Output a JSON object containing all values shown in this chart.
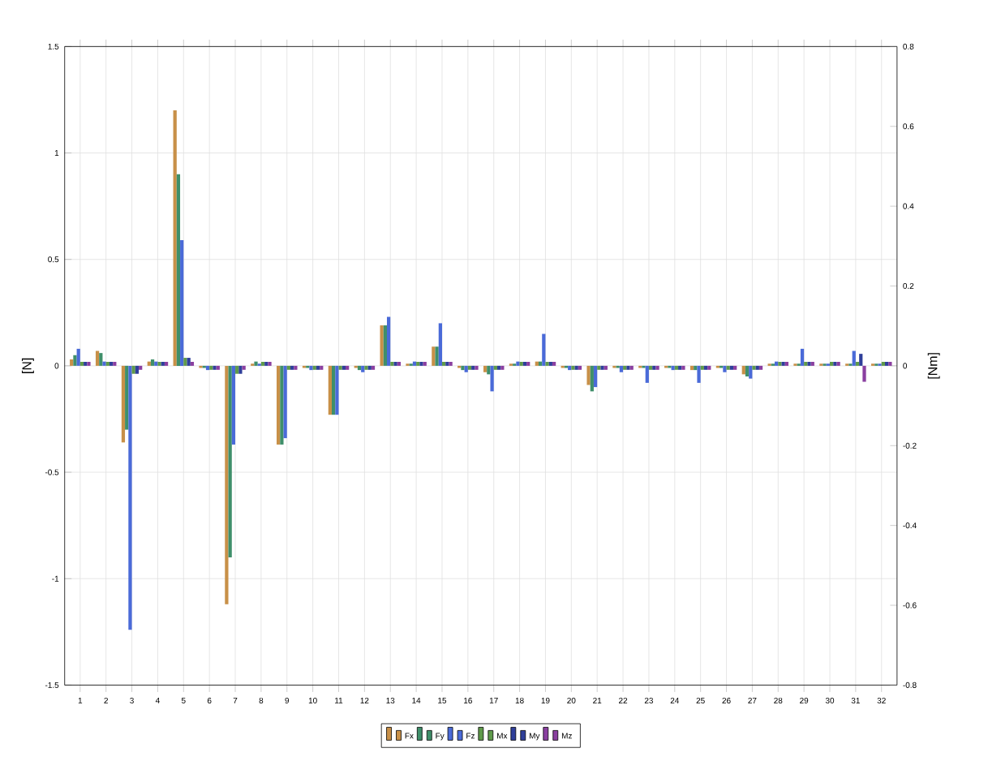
{
  "chart_data": {
    "type": "bar",
    "ylabel": "[N]",
    "y2label": "[Nm]",
    "categories": [
      "1",
      "2",
      "3",
      "4",
      "5",
      "6",
      "7",
      "8",
      "9",
      "10",
      "11",
      "12",
      "13",
      "14",
      "15",
      "16",
      "17",
      "18",
      "19",
      "20",
      "21",
      "22",
      "23",
      "24",
      "25",
      "26",
      "27",
      "28",
      "29",
      "30",
      "31",
      "32"
    ],
    "series": [
      {
        "name": "Fx",
        "color": "#c89048",
        "values": [
          0.03,
          0.07,
          -0.36,
          0.02,
          1.2,
          -0.01,
          -1.12,
          0.01,
          -0.37,
          -0.01,
          -0.23,
          -0.01,
          0.19,
          0.01,
          0.09,
          -0.01,
          -0.03,
          0.01,
          0.02,
          -0.01,
          -0.09,
          -0.01,
          -0.01,
          -0.01,
          -0.02,
          -0.01,
          -0.04,
          0.01,
          0.01,
          0.01,
          0.01,
          0.01
        ]
      },
      {
        "name": "Fy",
        "color": "#3f8f6a",
        "values": [
          0.05,
          0.06,
          -0.3,
          0.03,
          0.9,
          -0.01,
          -0.9,
          0.02,
          -0.37,
          -0.01,
          -0.23,
          -0.02,
          0.19,
          0.01,
          0.09,
          -0.02,
          -0.04,
          0.01,
          0.02,
          -0.01,
          -0.12,
          -0.01,
          -0.01,
          -0.01,
          -0.02,
          -0.01,
          -0.05,
          0.01,
          0.01,
          0.01,
          0.01,
          0.01
        ]
      },
      {
        "name": "Fz",
        "color": "#4a6ad8",
        "values": [
          0.08,
          0.02,
          -1.24,
          0.02,
          0.59,
          -0.02,
          -0.37,
          0.01,
          -0.34,
          -0.02,
          -0.23,
          -0.03,
          0.23,
          0.02,
          0.2,
          -0.03,
          -0.12,
          0.02,
          0.15,
          -0.02,
          -0.1,
          -0.03,
          -0.08,
          -0.02,
          -0.08,
          -0.03,
          -0.06,
          0.02,
          0.08,
          0.01,
          0.07,
          0.01
        ]
      },
      {
        "name": "Mx",
        "color": "#5f9a4a",
        "axis": "y2",
        "values": [
          0.01,
          0.01,
          -0.02,
          0.01,
          0.02,
          -0.01,
          -0.02,
          0.01,
          -0.01,
          -0.01,
          -0.01,
          -0.01,
          0.01,
          0.01,
          0.01,
          -0.01,
          -0.01,
          0.01,
          0.01,
          -0.01,
          -0.01,
          -0.01,
          -0.01,
          -0.01,
          -0.01,
          -0.01,
          -0.01,
          0.01,
          0.01,
          0.01,
          0.01,
          0.01
        ]
      },
      {
        "name": "My",
        "color": "#2f3f9a",
        "axis": "y2",
        "values": [
          0.01,
          0.01,
          -0.02,
          0.01,
          0.02,
          -0.01,
          -0.02,
          0.01,
          -0.01,
          -0.01,
          -0.01,
          -0.01,
          0.01,
          0.01,
          0.01,
          -0.01,
          -0.01,
          0.01,
          0.01,
          -0.01,
          -0.01,
          -0.01,
          -0.01,
          -0.01,
          -0.01,
          -0.01,
          -0.01,
          0.01,
          0.01,
          0.01,
          0.03,
          0.01
        ]
      },
      {
        "name": "Mz",
        "color": "#8a3fa0",
        "axis": "y2",
        "values": [
          0.01,
          0.01,
          -0.01,
          0.01,
          0.01,
          -0.01,
          -0.01,
          0.01,
          -0.01,
          -0.01,
          -0.01,
          -0.01,
          0.01,
          0.01,
          0.01,
          -0.01,
          -0.01,
          0.01,
          0.01,
          -0.01,
          -0.01,
          -0.01,
          -0.01,
          -0.01,
          -0.01,
          -0.01,
          -0.01,
          0.01,
          0.01,
          0.01,
          -0.04,
          0.01
        ]
      }
    ],
    "ylim": [
      -1.5,
      1.5
    ],
    "yticks": [
      -1.5,
      -1,
      -0.5,
      0,
      0.5,
      1,
      1.5
    ],
    "y2lim": [
      -0.8,
      0.8
    ],
    "y2ticks": [
      -0.8,
      -0.6,
      -0.4,
      -0.2,
      0,
      0.2,
      0.4,
      0.6,
      0.8
    ],
    "grid": true,
    "legend": "bottom"
  }
}
